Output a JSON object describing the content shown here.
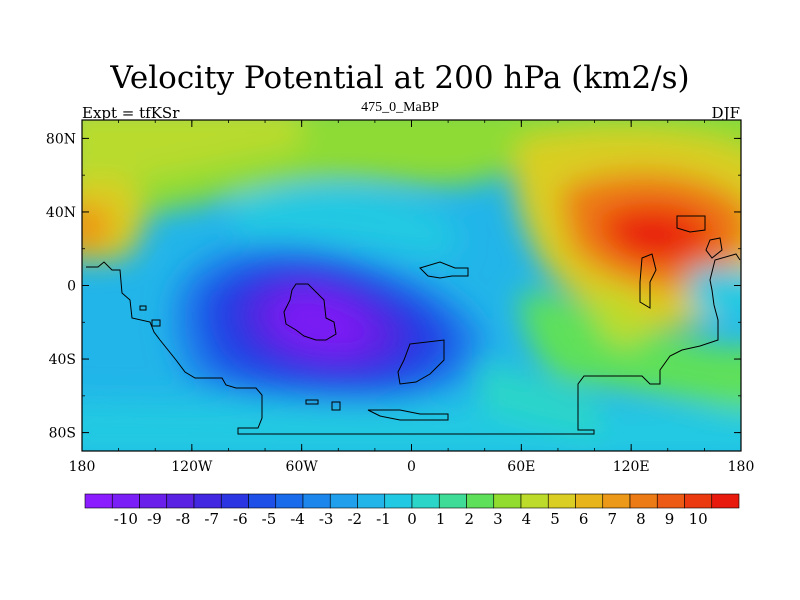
{
  "chart_data": {
    "type": "heatmap",
    "title": "Velocity Potential at 200 hPa (km2/s)",
    "left_label": "Expt = tfKSr",
    "center_label": "475_0_MaBP",
    "right_label": "DJF",
    "x_ticks": [
      "180",
      "120W",
      "60W",
      "0",
      "60E",
      "120E",
      "180"
    ],
    "y_ticks": [
      "80N",
      "40N",
      "0",
      "40S",
      "80S"
    ],
    "x_range": [
      -180,
      180
    ],
    "y_range": [
      -90,
      90
    ],
    "colorbar_labels": [
      "-10",
      "-9",
      "-8",
      "-7",
      "-6",
      "-5",
      "-4",
      "-3",
      "-2",
      "-1",
      "0",
      "1",
      "2",
      "3",
      "4",
      "5",
      "6",
      "7",
      "8",
      "9",
      "10"
    ],
    "colorbar_colors": [
      "#8A1CFF",
      "#7A1FF5",
      "#6A1FEB",
      "#5A22E2",
      "#4328E2",
      "#2C35E2",
      "#1E4FE6",
      "#1A6BEB",
      "#1D86EC",
      "#1F9FEC",
      "#22B5E9",
      "#22C9E2",
      "#2BD6C8",
      "#3FDC98",
      "#5FE05A",
      "#92DB2F",
      "#BCDB2B",
      "#DACE24",
      "#E8B41B",
      "#EC9818",
      "#EC7A15",
      "#EC5A13",
      "#EB3A10",
      "#E81A0D"
    ],
    "extremes": [
      {
        "label": "velocity potential minimum",
        "lon": -45,
        "lat": -20,
        "value": -10
      },
      {
        "label": "velocity potential maximum",
        "lon": 125,
        "lat": 23,
        "value": 10
      }
    ]
  }
}
